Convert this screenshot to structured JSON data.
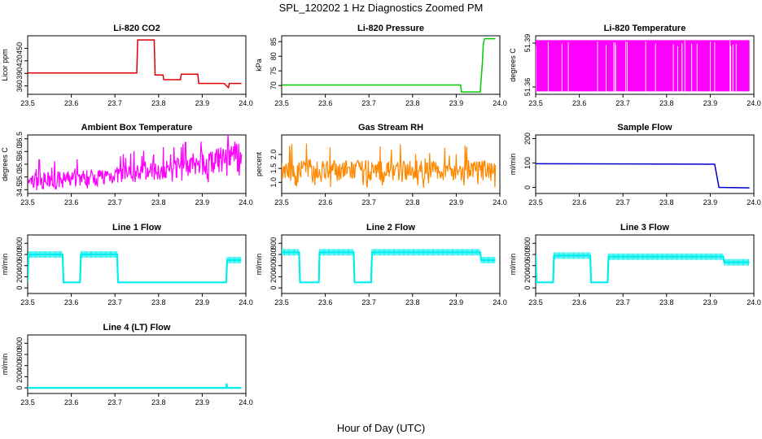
{
  "figure": {
    "title": "SPL_120202  1 Hz Diagnostics Zoomed PM",
    "xlabel": "Hour of Day (UTC)"
  },
  "chart_data": [
    {
      "type": "line",
      "title": "Li-820 CO2",
      "ylabel": "Licor ppm",
      "color": "#dd0000",
      "xlim": [
        23.5,
        24.0
      ],
      "ylim": [
        340,
        480
      ],
      "xticks": [
        "23.5",
        "23.6",
        "23.7",
        "23.8",
        "23.9",
        "24.0"
      ],
      "yticks": [
        {
          "v": 360,
          "label": "360"
        },
        {
          "v": 390,
          "label": "390"
        },
        {
          "v": 420,
          "label": "420"
        },
        {
          "v": 450,
          "label": "450"
        }
      ],
      "x": [
        23.5,
        23.75,
        23.752,
        23.79,
        23.792,
        23.81,
        23.812,
        23.85,
        23.852,
        23.89,
        23.892,
        23.95,
        23.96,
        23.962,
        23.99
      ],
      "y": [
        391,
        391,
        470,
        470,
        386,
        386,
        375,
        375,
        388,
        388,
        366,
        366,
        356,
        366,
        366
      ]
    },
    {
      "type": "line",
      "title": "Li-820 Pressure",
      "ylabel": "kPa",
      "color": "#00cc00",
      "xlim": [
        23.5,
        24.0
      ],
      "ylim": [
        67,
        87
      ],
      "xticks": [
        "23.5",
        "23.6",
        "23.7",
        "23.8",
        "23.9",
        "24.0"
      ],
      "yticks": [
        {
          "v": 70,
          "label": "70"
        },
        {
          "v": 75,
          "label": "75"
        },
        {
          "v": 80,
          "label": "80"
        },
        {
          "v": 85,
          "label": "85"
        }
      ],
      "x": [
        23.5,
        23.91,
        23.912,
        23.955,
        23.96,
        23.962,
        23.965,
        23.99
      ],
      "y": [
        70.2,
        70.2,
        67.8,
        67.8,
        78,
        84,
        86,
        86
      ]
    },
    {
      "type": "line",
      "title": "Li-820 Temperature",
      "ylabel": "degrees C",
      "color": "#ff00ff",
      "xlim": [
        23.5,
        24.0
      ],
      "ylim": [
        51.355,
        51.395
      ],
      "xticks": [
        "23.5",
        "23.6",
        "23.7",
        "23.8",
        "23.9",
        "24.0"
      ],
      "yticks": [
        {
          "v": 51.36,
          "label": "51.36"
        },
        {
          "v": 51.39,
          "label": "51.39"
        }
      ],
      "band": [
        51.357,
        51.392
      ],
      "x": [
        23.5,
        23.99
      ],
      "y": [
        51.357,
        51.392
      ]
    },
    {
      "type": "line",
      "title": "Ambient Box Temperature",
      "ylabel": "degrees C",
      "color": "#ff00ff",
      "xlim": [
        23.5,
        24.0
      ],
      "ylim": [
        34.35,
        36.65
      ],
      "xticks": [
        "23.5",
        "23.6",
        "23.7",
        "23.8",
        "23.9",
        "24.0"
      ],
      "yticks": [
        {
          "v": 34.5,
          "label": "34.5"
        },
        {
          "v": 35.0,
          "label": "35.0"
        },
        {
          "v": 35.5,
          "label": "35.5"
        },
        {
          "v": 36.0,
          "label": "36.0"
        },
        {
          "v": 36.5,
          "label": "36.5"
        }
      ],
      "x": [
        23.5,
        23.6,
        23.7,
        23.8,
        23.9,
        23.99
      ],
      "lower": [
        34.45,
        34.6,
        34.75,
        34.9,
        35.05,
        35.3
      ],
      "upper": [
        35.15,
        35.25,
        35.4,
        35.6,
        35.9,
        36.5
      ]
    },
    {
      "type": "line",
      "title": "Gas Stream RH",
      "ylabel": "percent",
      "color": "#ff8800",
      "xlim": [
        23.5,
        24.0
      ],
      "ylim": [
        0.6,
        2.7
      ],
      "xticks": [
        "23.5",
        "23.6",
        "23.7",
        "23.8",
        "23.9",
        "24.0"
      ],
      "yticks": [
        {
          "v": 1.0,
          "label": "1.0"
        },
        {
          "v": 1.5,
          "label": "1.5"
        },
        {
          "v": 2.0,
          "label": "2.0"
        }
      ],
      "x": [
        23.5,
        23.99
      ],
      "lower": [
        1.05,
        1.05
      ],
      "upper": [
        1.8,
        1.8
      ]
    },
    {
      "type": "line",
      "title": "Sample Flow",
      "ylabel": "ml/min",
      "color": "#0000cc",
      "xlim": [
        23.5,
        24.0
      ],
      "ylim": [
        -25,
        215
      ],
      "xticks": [
        "23.5",
        "23.6",
        "23.7",
        "23.8",
        "23.9",
        "24.0"
      ],
      "yticks": [
        {
          "v": 0,
          "label": "0"
        },
        {
          "v": 100,
          "label": "100"
        },
        {
          "v": 200,
          "label": "200"
        }
      ],
      "x": [
        23.5,
        23.91,
        23.915,
        23.92,
        23.99
      ],
      "y": [
        97,
        95,
        50,
        0,
        -2
      ]
    },
    {
      "type": "line",
      "title": "Line 1 Flow",
      "ylabel": "ml/min",
      "color": "#00eeee",
      "xlim": [
        23.5,
        24.0
      ],
      "ylim": [
        -100,
        950
      ],
      "xticks": [
        "23.5",
        "23.6",
        "23.7",
        "23.8",
        "23.9",
        "24.0"
      ],
      "yticks": [
        {
          "v": 0,
          "label": "0"
        },
        {
          "v": 200,
          "label": "200"
        },
        {
          "v": 400,
          "label": "400"
        },
        {
          "v": 600,
          "label": "600"
        },
        {
          "v": 800,
          "label": "800"
        }
      ],
      "x": [
        23.5,
        23.502,
        23.58,
        23.582,
        23.62,
        23.622,
        23.705,
        23.707,
        23.955,
        23.957,
        23.99
      ],
      "y": [
        100,
        600,
        600,
        100,
        100,
        600,
        600,
        100,
        100,
        500,
        500
      ]
    },
    {
      "type": "line",
      "title": "Line 2 Flow",
      "ylabel": "ml/min",
      "color": "#00eeee",
      "xlim": [
        23.5,
        24.0
      ],
      "ylim": [
        -100,
        950
      ],
      "xticks": [
        "23.5",
        "23.6",
        "23.7",
        "23.8",
        "23.9",
        "24.0"
      ],
      "yticks": [
        {
          "v": 0,
          "label": "0"
        },
        {
          "v": 200,
          "label": "200"
        },
        {
          "v": 400,
          "label": "400"
        },
        {
          "v": 600,
          "label": "600"
        },
        {
          "v": 800,
          "label": "800"
        }
      ],
      "x": [
        23.5,
        23.54,
        23.542,
        23.585,
        23.587,
        23.665,
        23.667,
        23.705,
        23.707,
        23.955,
        23.957,
        23.99
      ],
      "y": [
        640,
        640,
        100,
        100,
        640,
        640,
        100,
        100,
        640,
        640,
        500,
        500
      ]
    },
    {
      "type": "line",
      "title": "Line 3 Flow",
      "ylabel": "ml/min",
      "color": "#00eeee",
      "xlim": [
        23.5,
        24.0
      ],
      "ylim": [
        -100,
        950
      ],
      "xticks": [
        "23.5",
        "23.6",
        "23.7",
        "23.8",
        "23.9",
        "24.0"
      ],
      "yticks": [
        {
          "v": 0,
          "label": "0"
        },
        {
          "v": 200,
          "label": "200"
        },
        {
          "v": 400,
          "label": "400"
        },
        {
          "v": 600,
          "label": "600"
        },
        {
          "v": 800,
          "label": "800"
        }
      ],
      "x": [
        23.5,
        23.502,
        23.54,
        23.542,
        23.625,
        23.627,
        23.665,
        23.667,
        23.93,
        23.932,
        23.99
      ],
      "y": [
        600,
        100,
        100,
        580,
        580,
        100,
        100,
        560,
        560,
        460,
        460
      ]
    },
    {
      "type": "line",
      "title": "Line 4 (LT) Flow",
      "ylabel": "ml/min",
      "color": "#00eeee",
      "xlim": [
        23.5,
        24.0
      ],
      "ylim": [
        -100,
        950
      ],
      "xticks": [
        "23.5",
        "23.6",
        "23.7",
        "23.8",
        "23.9",
        "24.0"
      ],
      "yticks": [
        {
          "v": 0,
          "label": "0"
        },
        {
          "v": 200,
          "label": "200"
        },
        {
          "v": 400,
          "label": "400"
        },
        {
          "v": 600,
          "label": "600"
        },
        {
          "v": 800,
          "label": "800"
        }
      ],
      "x": [
        23.5,
        23.955,
        23.956,
        23.957,
        23.99
      ],
      "y": [
        0,
        0,
        80,
        0,
        0
      ]
    }
  ]
}
